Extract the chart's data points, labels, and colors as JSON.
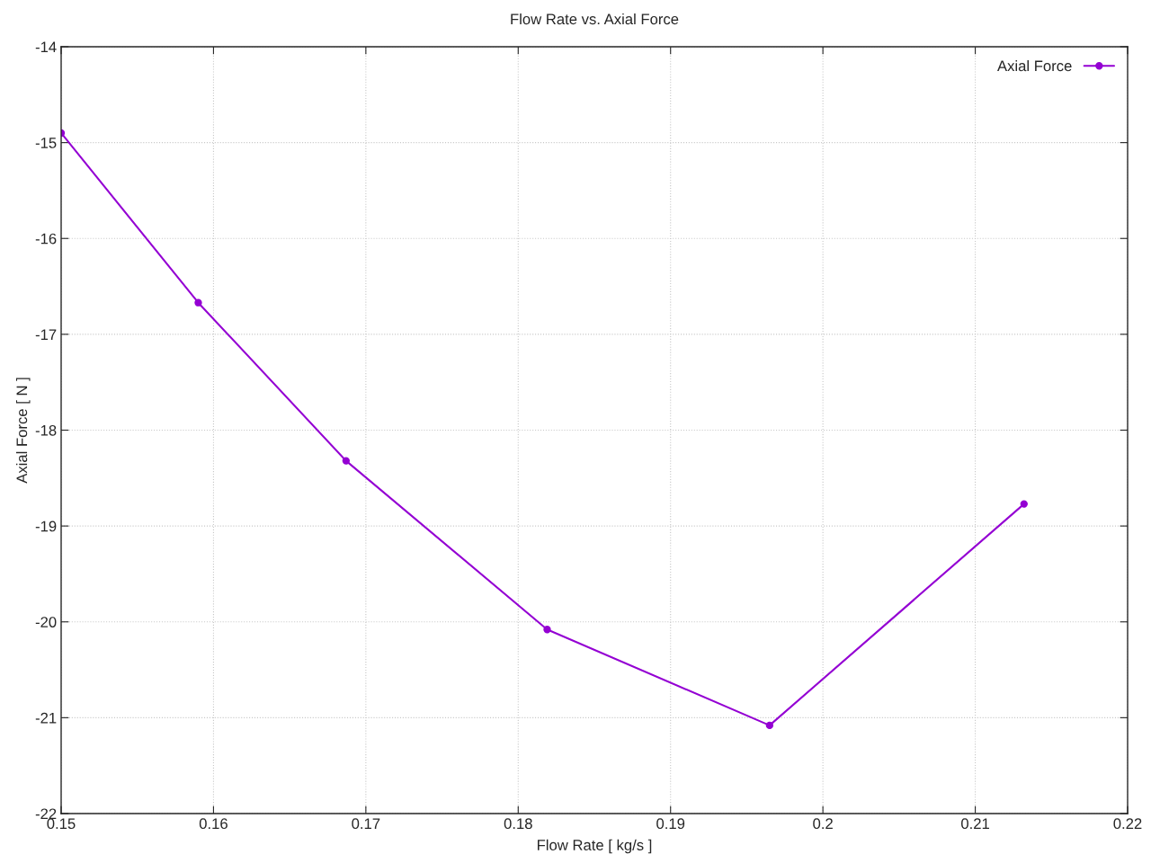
{
  "chart_data": {
    "type": "line",
    "title": "Flow Rate vs. Axial Force",
    "xlabel": "Flow Rate [ kg/s ]",
    "ylabel": "Axial Force [ N ]",
    "x": [
      0.15,
      0.159,
      0.1687,
      0.1819,
      0.1965,
      0.2132
    ],
    "series": [
      {
        "name": "Axial Force",
        "color": "#9400d3",
        "values": [
          -14.9,
          -16.67,
          -18.32,
          -20.08,
          -21.08,
          -18.77
        ]
      }
    ],
    "xlim": [
      0.15,
      0.22
    ],
    "xticks": [
      0.15,
      0.16,
      0.17,
      0.18,
      0.19,
      {
        "value": 0.2,
        "label": "0.2"
      },
      0.21,
      0.22
    ],
    "ylim": [
      -22,
      -14
    ],
    "yticks": [
      -22,
      -21,
      -20,
      -19,
      -18,
      -17,
      -16,
      -15,
      -14
    ],
    "grid": true,
    "legend": "top right",
    "marker": "circle",
    "line_style": "solid"
  }
}
